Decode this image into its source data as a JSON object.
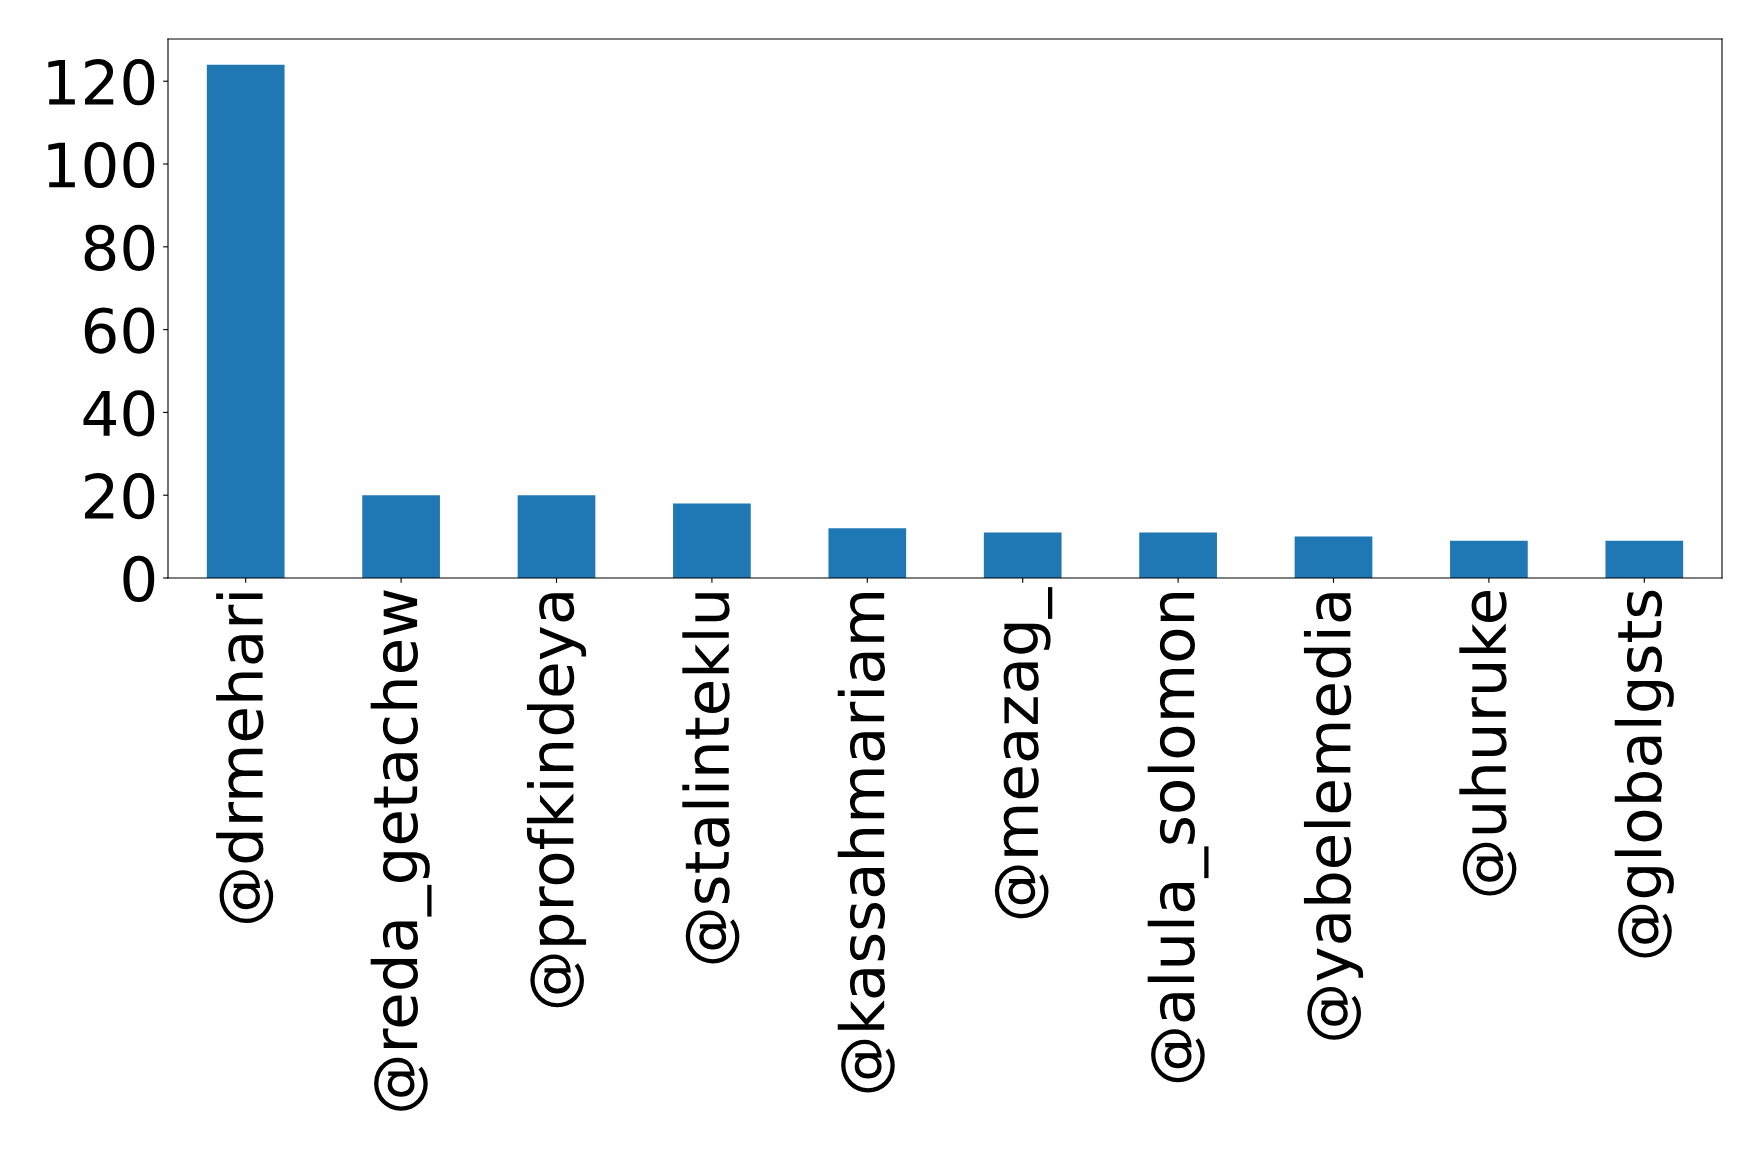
{
  "chart_data": {
    "type": "bar",
    "categories": [
      "@drmehari",
      "@reda_getachew",
      "@profkindeya",
      "@stalinteklu",
      "@kassahmariam",
      "@meazag_",
      "@alula_solomon",
      "@yabelemedia",
      "@uhuruke",
      "@globalgsts"
    ],
    "values": [
      124,
      20,
      20,
      18,
      12,
      11,
      11,
      10,
      9,
      9
    ],
    "color": "#1f77b4",
    "ylim": [
      0,
      130.2
    ],
    "yticks": [
      0,
      20,
      40,
      60,
      80,
      100,
      120
    ],
    "grid": false,
    "legend": false
  }
}
